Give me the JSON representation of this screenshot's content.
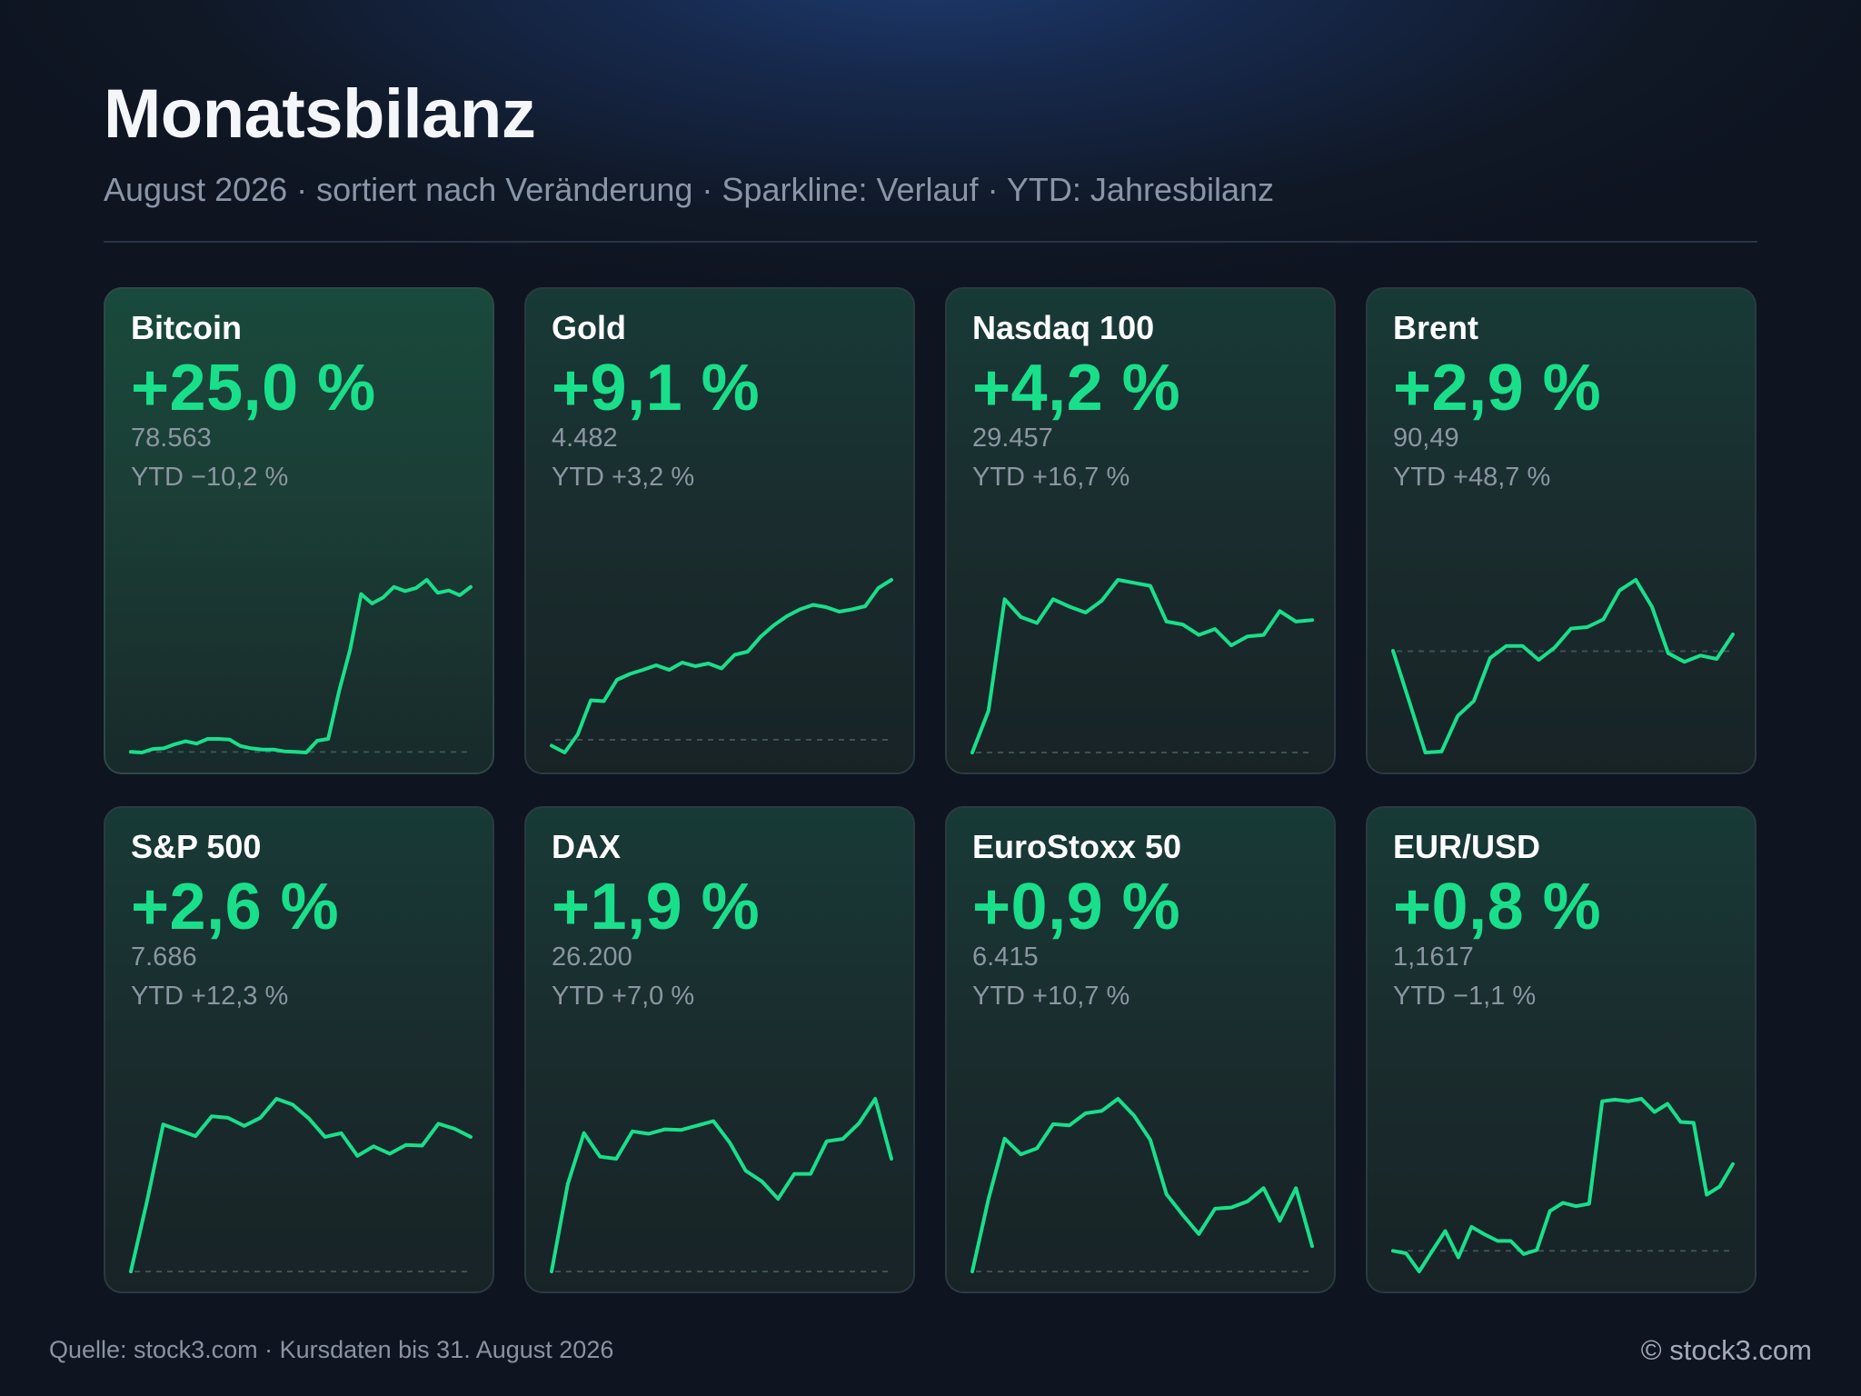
{
  "header": {
    "title": "Monatsbilanz",
    "subtitle": "August 2026 · sortiert nach Veränderung · Sparkline: Verlauf · YTD: Jahresbilanz"
  },
  "footer": {
    "source": "Quelle: stock3.com · Kursdaten bis 31. August 2026",
    "copyright": "© stock3.com"
  },
  "colors": {
    "accent": "#19df8b",
    "background": "#101826",
    "card_border": "#2b3a40"
  },
  "chart_data": {
    "type": "line",
    "cards": [
      {
        "name": "Bitcoin",
        "change": "+25,0 %",
        "price": "78.563",
        "ytd": "YTD −10,2 %",
        "start": 62850,
        "values": [
          62850,
          62800,
          63100,
          63150,
          63500,
          63750,
          63550,
          63950,
          63950,
          63900,
          63350,
          63150,
          63050,
          63050,
          62900,
          62850,
          62800,
          63800,
          63950,
          68000,
          71500,
          76200,
          75400,
          75900,
          76800,
          76450,
          76700,
          77400,
          76300,
          76500,
          76100,
          76800
        ]
      },
      {
        "name": "Gold",
        "change": "+9,1 %",
        "price": "4.482",
        "ytd": "YTD +3,2 %",
        "start": 4108,
        "values": [
          4095,
          4080,
          4120,
          4195,
          4193,
          4240,
          4253,
          4262,
          4272,
          4262,
          4278,
          4270,
          4276,
          4265,
          4295,
          4302,
          4335,
          4360,
          4380,
          4395,
          4405,
          4400,
          4390,
          4395,
          4402,
          4442,
          4460
        ]
      },
      {
        "name": "Nasdaq 100",
        "change": "+4,2 %",
        "price": "29.457",
        "ytd": "YTD +16,7 %",
        "start": 28270,
        "values": [
          28270,
          28550,
          29300,
          29180,
          29140,
          29300,
          29250,
          29210,
          29290,
          29430,
          29410,
          29390,
          29150,
          29130,
          29060,
          29100,
          28990,
          29050,
          29060,
          29220,
          29150,
          29160
        ]
      },
      {
        "name": "Brent",
        "change": "+2,9 %",
        "price": "90,49",
        "ytd": "YTD +48,7 %",
        "start": 87940,
        "values": [
          87950,
          86900,
          85840,
          85860,
          86600,
          86910,
          87800,
          88050,
          88050,
          87760,
          88020,
          88410,
          88440,
          88600,
          89200,
          89420,
          88860,
          87900,
          87720,
          87850,
          87780,
          88290
        ]
      },
      {
        "name": "S&P 500",
        "change": "+2,6 %",
        "price": "7.686",
        "ytd": "YTD +12,3 %",
        "start": 7491,
        "values": [
          7491,
          7587,
          7692,
          7684,
          7676,
          7703,
          7701,
          7690,
          7701,
          7727,
          7719,
          7700,
          7675,
          7680,
          7649,
          7662,
          7652,
          7664,
          7663,
          7693,
          7686,
          7675
        ]
      },
      {
        "name": "DAX",
        "change": "+1,9 %",
        "price": "26.200",
        "ytd": "YTD +7,0 %",
        "start": 25712,
        "values": [
          25712,
          25967,
          26116,
          26047,
          26041,
          26121,
          26114,
          26127,
          26125,
          26138,
          26151,
          26089,
          26006,
          25975,
          25924,
          25997,
          25997,
          26092,
          26099,
          26145,
          26216,
          26041
        ]
      },
      {
        "name": "EuroStoxx 50",
        "change": "+0,9 %",
        "price": "6.415",
        "ytd": "YTD +10,7 %",
        "start": 6358,
        "values": [
          6358,
          6418,
          6468,
          6455,
          6460,
          6480,
          6479,
          6489,
          6491,
          6501,
          6487,
          6467,
          6422,
          6405,
          6389,
          6410,
          6411,
          6416,
          6427,
          6400,
          6427,
          6379
        ]
      },
      {
        "name": "EUR/USD",
        "change": "+0,8 %",
        "price": "1,1617",
        "ytd": "YTD −1,1 %",
        "start": 1.1525,
        "values": [
          1.1525,
          1.1522,
          1.15,
          1.1525,
          1.1549,
          1.1517,
          1.1554,
          1.1545,
          1.1537,
          1.1537,
          1.1521,
          1.1526,
          1.1573,
          1.1583,
          1.1579,
          1.1582,
          1.1706,
          1.1708,
          1.1706,
          1.1709,
          1.1693,
          1.1703,
          1.1681,
          1.168,
          1.1593,
          1.1603,
          1.163
        ]
      }
    ]
  }
}
